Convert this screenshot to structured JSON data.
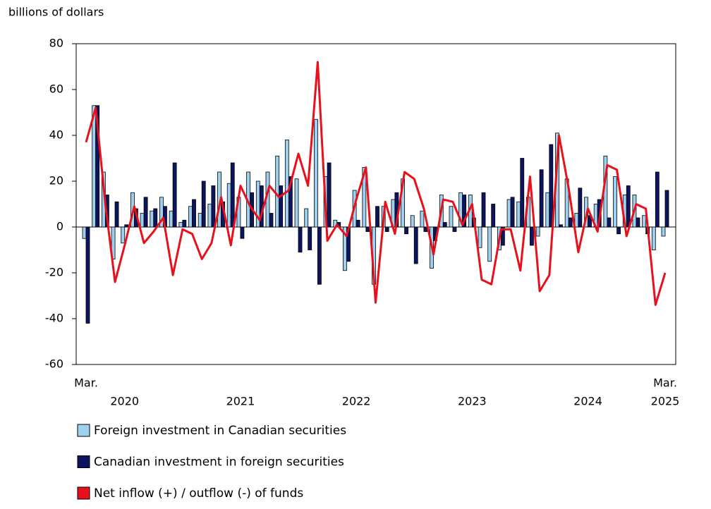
{
  "chart_data": {
    "type": "bar-line",
    "y_axis_label": "billions of dollars",
    "categories": [
      "Mar.",
      null,
      null,
      null,
      null,
      null,
      null,
      null,
      null,
      null,
      null,
      null,
      null,
      null,
      null,
      null,
      null,
      null,
      null,
      null,
      null,
      null,
      null,
      null,
      null,
      null,
      null,
      null,
      null,
      null,
      null,
      null,
      null,
      null,
      null,
      null,
      null,
      null,
      null,
      null,
      null,
      null,
      null,
      null,
      null,
      null,
      null,
      null,
      null,
      null,
      null,
      null,
      null,
      null,
      null,
      null,
      null,
      null,
      null,
      null,
      "Mar."
    ],
    "year_labels": [
      "2020",
      "2021",
      "2022",
      "2023",
      "2024",
      "2025"
    ],
    "ylim": [
      -60,
      80
    ],
    "yticks": [
      -60,
      -40,
      -20,
      0,
      20,
      40,
      60,
      80
    ],
    "series": [
      {
        "name": "Foreign investment in Canadian securities",
        "type": "bar",
        "color": "#9fd0f2",
        "values": [
          -5,
          53,
          24,
          -14,
          -7,
          15,
          6,
          7,
          13,
          7,
          2,
          9,
          6,
          10,
          24,
          19,
          13,
          24,
          20,
          24,
          31,
          38,
          21,
          8,
          47,
          22,
          3,
          -19,
          16,
          26,
          -25,
          9,
          12,
          21,
          5,
          7,
          -18,
          14,
          9,
          15,
          14,
          -9,
          -15,
          -10,
          12,
          11,
          13,
          -4,
          15,
          41,
          21,
          6,
          13,
          10,
          31,
          22,
          14,
          14,
          5,
          -10,
          -4
        ]
      },
      {
        "name": "Canadian investment in foreign securities",
        "type": "bar",
        "color": "#0b1560",
        "values": [
          -42,
          53,
          14,
          11,
          1,
          8,
          13,
          8,
          9,
          28,
          3,
          12,
          20,
          18,
          11,
          28,
          -5,
          15,
          18,
          6,
          18,
          22,
          -11,
          -10,
          -25,
          28,
          2,
          -15,
          3,
          -2,
          9,
          -2,
          15,
          -3,
          -16,
          -2,
          -6,
          2,
          -2,
          14,
          4,
          15,
          10,
          -8,
          13,
          30,
          -8,
          25,
          36,
          1,
          4,
          17,
          5,
          12,
          4,
          -3,
          18,
          4,
          -3,
          24,
          16
        ]
      },
      {
        "name": "Net inflow (+) / outflow (-) of funds",
        "type": "line",
        "color": "#e8101b",
        "values": [
          37,
          52,
          10,
          -24,
          -8,
          9,
          -7,
          -2,
          4,
          -21,
          -1,
          -3,
          -14,
          -7,
          13,
          -8,
          18,
          9,
          3,
          18,
          13,
          16,
          32,
          18,
          72,
          -6,
          1,
          -4,
          12,
          26,
          -33,
          11,
          -3,
          24,
          21,
          8,
          -12,
          12,
          11,
          1,
          10,
          -23,
          -25,
          -1,
          -1,
          -19,
          22,
          -28,
          -21,
          40,
          17,
          -11,
          8,
          -2,
          27,
          25,
          -4,
          10,
          8,
          -34,
          -20
        ]
      }
    ]
  }
}
